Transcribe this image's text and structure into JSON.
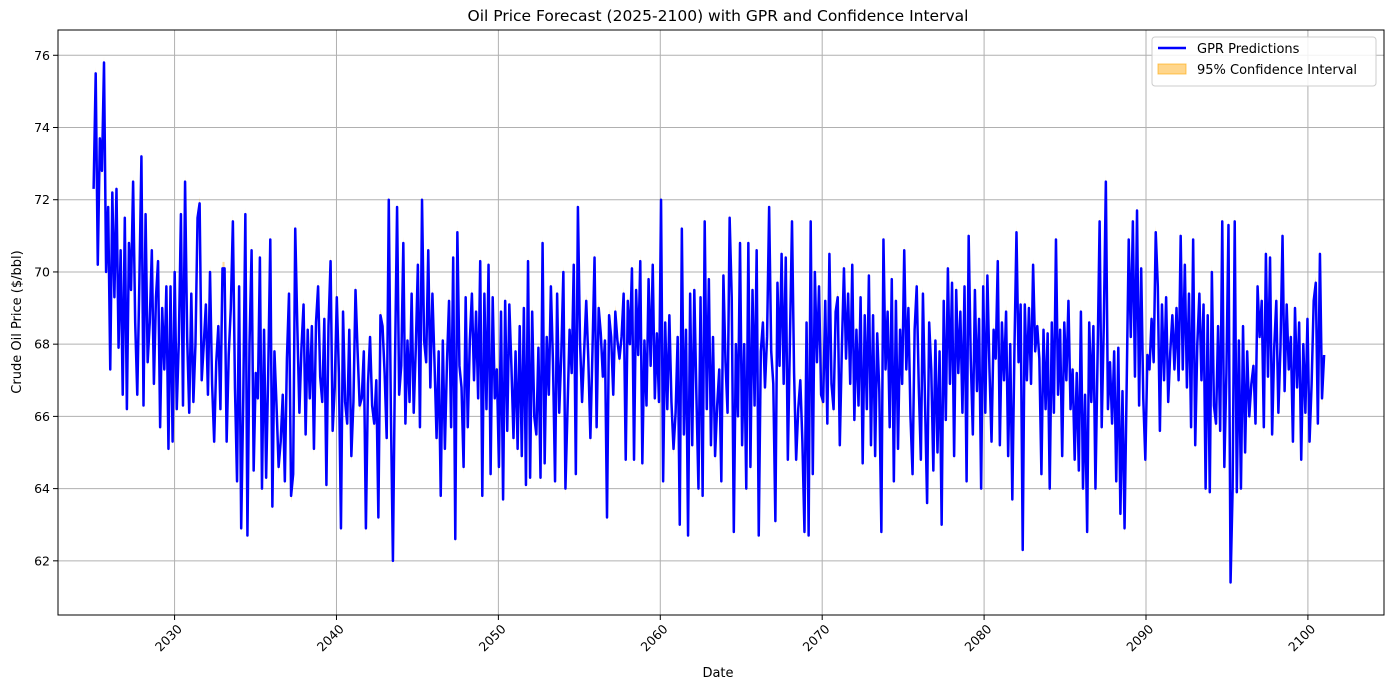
{
  "chart_data": {
    "type": "line",
    "title": "Oil Price Forecast (2025-2100) with GPR and Confidence Interval",
    "xlabel": "Date",
    "ylabel": "Crude Oil Price ($/bbl)",
    "xlim": [
      2022.8,
      2104.7
    ],
    "ylim": [
      60.5,
      76.7
    ],
    "x_ticks": [
      2030,
      2040,
      2050,
      2060,
      2070,
      2080,
      2090,
      2100
    ],
    "y_ticks": [
      62,
      64,
      66,
      68,
      70,
      72,
      74,
      76
    ],
    "grid": true,
    "legend_position": "top-right",
    "x_start": 2025.0,
    "x_end": 2101.0,
    "series": [
      {
        "name": "GPR Predictions",
        "color": "#0000ff",
        "y": [
          72.3,
          75.5,
          70.2,
          73.7,
          72.8,
          75.8,
          70.0,
          71.8,
          67.3,
          72.2,
          69.3,
          72.3,
          67.9,
          70.6,
          66.6,
          71.5,
          66.2,
          70.8,
          69.5,
          72.5,
          68.6,
          66.6,
          69.7,
          73.2,
          66.3,
          71.6,
          67.5,
          68.6,
          70.6,
          66.9,
          69.3,
          70.3,
          65.7,
          69.0,
          67.3,
          69.6,
          65.1,
          69.6,
          65.3,
          70.0,
          66.2,
          68.1,
          71.6,
          66.3,
          72.5,
          68.2,
          66.1,
          69.4,
          66.4,
          68.0,
          71.5,
          71.9,
          67.0,
          68.0,
          69.1,
          66.6,
          70.0,
          66.9,
          65.3,
          67.5,
          68.5,
          66.2,
          70.1,
          70.1,
          65.3,
          67.7,
          69.0,
          71.4,
          66.8,
          64.2,
          69.6,
          62.9,
          66.5,
          71.6,
          62.7,
          68.0,
          70.6,
          64.5,
          67.2,
          66.5,
          70.4,
          64.0,
          68.4,
          64.3,
          67.2,
          70.9,
          63.5,
          67.8,
          66.3,
          64.6,
          65.3,
          66.6,
          64.2,
          67.6,
          69.4,
          63.8,
          64.4,
          71.2,
          68.5,
          66.1,
          67.9,
          69.1,
          65.5,
          68.4,
          66.5,
          68.5,
          65.1,
          68.6,
          69.6,
          67.1,
          66.4,
          68.7,
          64.1,
          68.5,
          70.3,
          65.6,
          66.8,
          69.3,
          67.2,
          62.9,
          68.9,
          66.4,
          65.8,
          68.4,
          64.9,
          66.4,
          69.5,
          67.8,
          66.3,
          66.5,
          67.8,
          62.9,
          66.9,
          68.2,
          66.3,
          65.8,
          67.0,
          63.2,
          68.8,
          68.5,
          67.2,
          65.4,
          72.0,
          66.2,
          62.0,
          67.5,
          71.8,
          66.6,
          67.4,
          70.8,
          65.8,
          68.1,
          66.4,
          69.4,
          66.1,
          67.9,
          70.2,
          65.7,
          72.0,
          68.1,
          67.5,
          70.6,
          66.8,
          69.4,
          67.5,
          65.4,
          67.8,
          63.8,
          68.1,
          65.1,
          67.5,
          69.2,
          65.7,
          70.4,
          62.6,
          71.1,
          67.4,
          66.8,
          64.6,
          69.3,
          65.7,
          68.1,
          69.4,
          67.0,
          68.9,
          66.5,
          70.3,
          63.8,
          69.4,
          66.2,
          70.2,
          64.4,
          69.3,
          66.5,
          67.3,
          64.6,
          68.9,
          63.7,
          69.2,
          65.6,
          69.1,
          67.4,
          65.4,
          67.8,
          65.1,
          68.5,
          64.9,
          69.0,
          64.1,
          70.3,
          64.3,
          68.9,
          66.0,
          65.5,
          67.9,
          64.3,
          70.8,
          64.7,
          68.2,
          66.6,
          69.6,
          67.5,
          64.2,
          69.4,
          66.1,
          67.7,
          70.0,
          64.0,
          66.2,
          68.4,
          67.2,
          70.2,
          64.4,
          71.8,
          68.1,
          66.4,
          67.8,
          69.2,
          67.6,
          65.4,
          67.8,
          70.4,
          65.7,
          69.0,
          68.3,
          67.1,
          68.1,
          63.2,
          68.8,
          68.2,
          66.6,
          68.9,
          68.1,
          67.6,
          68.2,
          69.4,
          64.8,
          69.2,
          68.0,
          70.1,
          64.8,
          69.5,
          67.7,
          70.3,
          64.7,
          68.1,
          66.3,
          69.8,
          67.4,
          70.2,
          66.5,
          68.3,
          66.4,
          72.0,
          64.2,
          68.6,
          66.2,
          68.8,
          66.4,
          65.1,
          66.1,
          68.2,
          63.0,
          71.2,
          65.5,
          68.4,
          62.7,
          69.4,
          65.2,
          69.5,
          66.6,
          64.0,
          69.3,
          63.8,
          71.4,
          66.2,
          69.8,
          65.2,
          68.2,
          64.9,
          66.3,
          67.3,
          64.2,
          69.9,
          67.5,
          66.1,
          71.5,
          69.3,
          62.8,
          68.0,
          66.0,
          70.8,
          65.2,
          68.0,
          64.0,
          70.8,
          64.6,
          69.5,
          66.3,
          70.6,
          62.7,
          67.8,
          68.6,
          66.8,
          68.2,
          71.8,
          67.8,
          66.9,
          63.1,
          69.7,
          67.4,
          70.5,
          66.9,
          70.4,
          64.8,
          68.1,
          71.4,
          67.2,
          64.8,
          66.2,
          67.0,
          65.3,
          62.8,
          68.6,
          62.7,
          71.4,
          64.4,
          70.0,
          67.5,
          69.6,
          66.6,
          66.4,
          69.2,
          65.8,
          70.5,
          66.9,
          66.2,
          68.9,
          69.3,
          65.2,
          67.9,
          70.1,
          67.6,
          69.4,
          66.9,
          70.2,
          65.9,
          68.4,
          66.3,
          69.3,
          64.7,
          68.8,
          66.2,
          69.9,
          65.2,
          68.8,
          64.9,
          68.3,
          66.7,
          62.8,
          70.9,
          67.3,
          68.9,
          65.7,
          69.8,
          64.2,
          69.2,
          65.1,
          68.4,
          66.9,
          70.6,
          67.3,
          69.0,
          66.0,
          64.4,
          68.4,
          69.6,
          66.8,
          64.8,
          69.4,
          66.4,
          63.6,
          68.6,
          67.3,
          64.5,
          68.1,
          65.0,
          67.8,
          63.0,
          69.2,
          65.9,
          70.1,
          66.9,
          69.7,
          64.9,
          69.5,
          67.2,
          68.9,
          66.1,
          69.6,
          64.2,
          71.0,
          67.6,
          65.5,
          69.5,
          66.7,
          68.7,
          64.0,
          69.6,
          66.1,
          69.9,
          67.3,
          65.3,
          68.4,
          67.6,
          70.3,
          65.2,
          68.6,
          67.0,
          68.9,
          64.9,
          68.0,
          63.7,
          67.8,
          71.1,
          67.5,
          69.1,
          62.3,
          69.1,
          67.0,
          69.0,
          66.9,
          70.2,
          67.8,
          68.5,
          67.6,
          64.4,
          68.4,
          66.2,
          68.3,
          64.0,
          68.6,
          66.1,
          70.9,
          66.6,
          68.4,
          64.9,
          68.6,
          67.0,
          69.2,
          66.2,
          67.3,
          64.8,
          67.2,
          64.5,
          68.9,
          64.0,
          66.6,
          62.8,
          68.6,
          66.4,
          68.5,
          64.0,
          67.6,
          71.4,
          65.7,
          68.5,
          72.5,
          66.2,
          67.5,
          65.8,
          67.8,
          64.2,
          67.9,
          63.3,
          66.7,
          62.9,
          66.8,
          70.9,
          68.2,
          71.4,
          67.1,
          71.7,
          66.3,
          70.1,
          66.5,
          64.8,
          67.7,
          67.3,
          68.7,
          67.5,
          71.1,
          69.6,
          65.6,
          69.1,
          67.0,
          69.3,
          66.4,
          67.8,
          68.8,
          67.3,
          69.0,
          67.0,
          71.0,
          67.3,
          70.2,
          66.8,
          69.4,
          65.7,
          70.9,
          65.2,
          68.0,
          69.4,
          67.0,
          69.1,
          64.0,
          68.8,
          63.9,
          70.0,
          66.3,
          65.8,
          68.5,
          65.6,
          71.4,
          64.6,
          67.2,
          71.3,
          61.4,
          64.0,
          71.4,
          63.9,
          68.1,
          64.0,
          68.5,
          65.0,
          67.8,
          66.0,
          66.9,
          67.4,
          65.8,
          69.6,
          68.2,
          69.2,
          65.7,
          70.5,
          67.1,
          70.4,
          65.5,
          67.9,
          69.2,
          66.1,
          67.9,
          71.0,
          66.7,
          69.1,
          67.3,
          68.2,
          65.3,
          69.0,
          66.8,
          68.6,
          64.8,
          68.0,
          66.1,
          68.7,
          65.3,
          66.9,
          69.2,
          69.7,
          65.8,
          70.5,
          66.5,
          67.7
        ]
      }
    ],
    "confidence_band": {
      "name": "95% Confidence Interval",
      "color": "#ffa500",
      "half_width": 0.18
    }
  }
}
